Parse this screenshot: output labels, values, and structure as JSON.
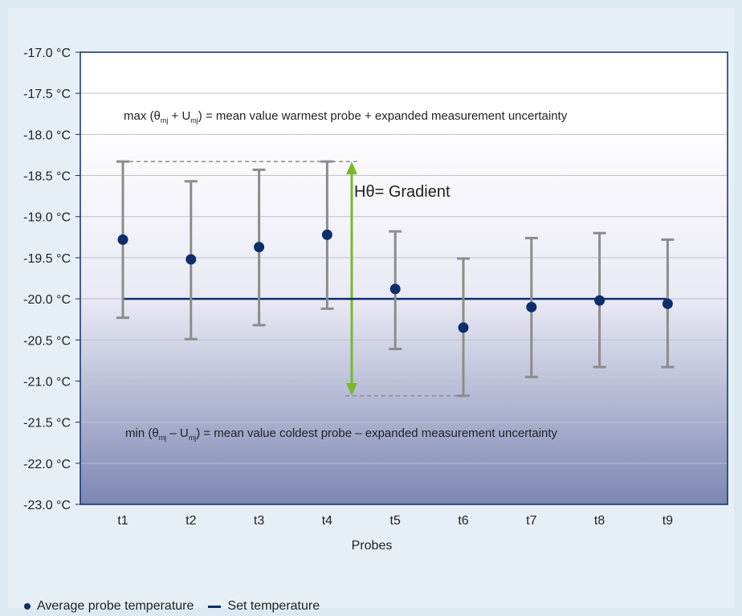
{
  "chart_data": {
    "type": "scatter",
    "categories": [
      "t1",
      "t2",
      "t3",
      "t4",
      "t5",
      "t6",
      "t7",
      "t8",
      "t9"
    ],
    "y_ticks": [
      "-17.0 °C",
      "-17.5 °C",
      "-18.0 °C",
      "-18.5 °C",
      "-19.0 °C",
      "-19.5 °C",
      "-20.0 °C",
      "-20.5 °C",
      "-21.0 °C",
      "-21.5 °C",
      "-22.0 °C",
      "-23.0 °C"
    ],
    "xlabel": "Probes",
    "ylabel": "",
    "series": [
      {
        "name": "Average probe temperature",
        "values": [
          -19.28,
          -19.52,
          -19.37,
          -19.22,
          -19.88,
          -20.35,
          -20.1,
          -20.02,
          -20.06
        ],
        "error_upper": [
          -18.33,
          -18.57,
          -18.43,
          -18.33,
          -19.18,
          -19.51,
          -19.26,
          -19.2,
          -19.28
        ],
        "error_lower": [
          -20.23,
          -20.49,
          -20.32,
          -20.12,
          -20.61,
          -21.18,
          -20.95,
          -20.83,
          -20.83
        ]
      },
      {
        "name": "Set temperature",
        "value": -20.0,
        "x_range": [
          "t1",
          "t9"
        ]
      }
    ],
    "gradient": {
      "from": -18.33,
      "to": -21.18,
      "label_left": "H",
      "label_theta": "θ",
      "label_right": "= Gradient"
    },
    "annotations": {
      "max": {
        "prefix": "max (",
        "theta": "θ",
        "sub_mj": "mj",
        "plus": " + U",
        "sub_mj2": "mj",
        "suffix": ") = mean value warmest probe + expanded measurement uncertainty"
      },
      "min": {
        "prefix": "min (",
        "theta": "θ",
        "sub_mj": "mj",
        "minus": " – U",
        "sub_mj2": "mj",
        "suffix": ") = mean value coldest probe – expanded measurement uncertainty"
      }
    },
    "colors": {
      "points": "#0d2e6b",
      "set_line": "#0d2e6b",
      "error_bars": "#8c8c8c",
      "gradient_arrow": "#7ab828",
      "grid": "#b9c2cf",
      "frame": "#0d2e6b"
    },
    "grid": true,
    "legend_position": "bottom-left"
  }
}
